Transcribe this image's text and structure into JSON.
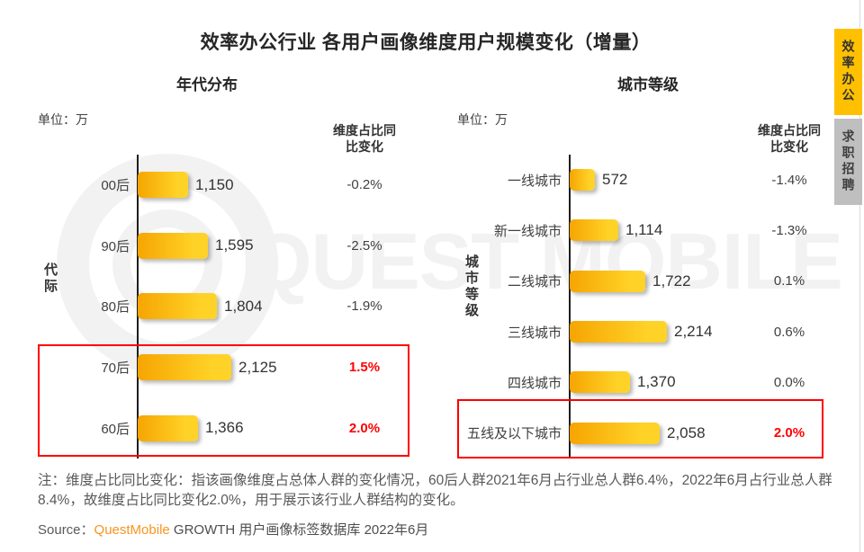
{
  "page": {
    "title": "效率办公行业 各用户画像维度用户规模变化（增量）",
    "watermark": "QUEST MOBILE",
    "note": "注：维度占比同比变化：指该画像维度占总体人群的变化情况，60后人群2021年6月占行业总人群6.4%，2022年6月占行业总人群8.4%，故维度占比同比变化2.0%，用于展示该行业人群结构的变化。",
    "source_label": "Source：",
    "source_brand": "QuestMobile",
    "source_rest": " GROWTH 用户画像标签数据库 2022年6月"
  },
  "tabs": [
    {
      "label": "效率办公",
      "active": true
    },
    {
      "label": "求职招聘",
      "active": false
    }
  ],
  "colors": {
    "bar_gradient_start": "#F6A502",
    "bar_gradient_end": "#FFD227",
    "highlight_red": "#FF0000",
    "tab_active_bg": "#FFC000",
    "tab_inactive_bg": "#BFBFBF",
    "brand_orange": "#F7941E",
    "watermark_gray": "#F2F2F2",
    "axis_black": "#1F1F1F"
  },
  "chart_data": [
    {
      "type": "bar",
      "orientation": "horizontal",
      "title": "年代分布",
      "unit_label": "单位：万",
      "axis_label": "代际",
      "change_header": "维度占比同比变化",
      "categories": [
        "00后",
        "90后",
        "80后",
        "70后",
        "60后"
      ],
      "values": [
        1150,
        1595,
        1804,
        2125,
        1366
      ],
      "value_labels": [
        "1,150",
        "1,595",
        "1,804",
        "2,125",
        "1,366"
      ],
      "changes": [
        "-0.2%",
        "-2.5%",
        "-1.9%",
        "1.5%",
        "2.0%"
      ],
      "highlighted_rows": [
        3,
        4
      ],
      "xlim": [
        0,
        2400
      ],
      "grid": false,
      "legend": false
    },
    {
      "type": "bar",
      "orientation": "horizontal",
      "title": "城市等级",
      "unit_label": "单位：万",
      "axis_label": "城市等级",
      "change_header": "维度占比同比变化",
      "categories": [
        "一线城市",
        "新一线城市",
        "二线城市",
        "三线城市",
        "四线城市",
        "五线及以下城市"
      ],
      "values": [
        572,
        1114,
        1722,
        2214,
        1370,
        2058
      ],
      "value_labels": [
        "572",
        "1,114",
        "1,722",
        "2,214",
        "1,370",
        "2,058"
      ],
      "changes": [
        "-1.4%",
        "-1.3%",
        "0.1%",
        "0.6%",
        "0.0%",
        "2.0%"
      ],
      "highlighted_rows": [
        5
      ],
      "xlim": [
        0,
        2400
      ],
      "grid": false,
      "legend": false
    }
  ]
}
